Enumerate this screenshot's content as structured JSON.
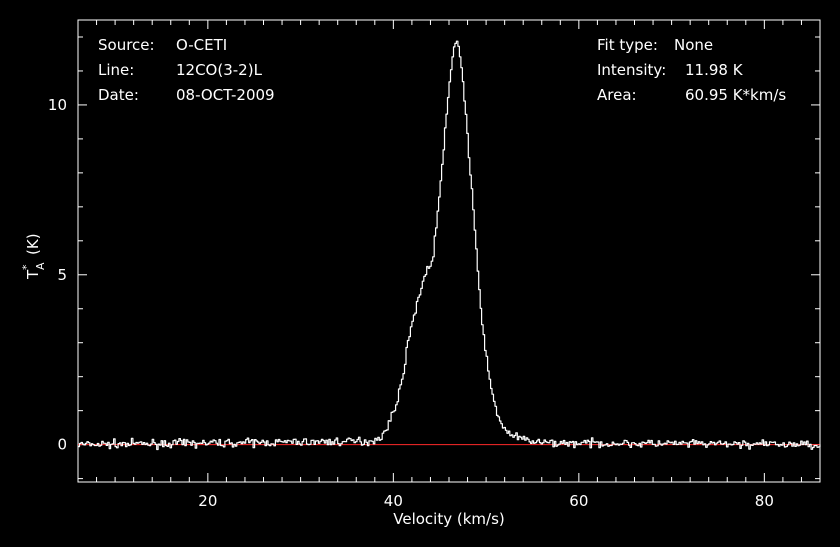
{
  "chart_data": {
    "type": "line",
    "xlabel": "Velocity (km/s)",
    "ylabel": "T*A (K)",
    "ylabel_main": "T",
    "ylabel_sup": "*",
    "ylabel_sub": "A",
    "ylabel_unit": "(K)",
    "xlim": [
      6,
      86
    ],
    "ylim": [
      -1.1,
      12.5
    ],
    "x_ticks": [
      20,
      40,
      60,
      80
    ],
    "y_ticks": [
      0,
      5,
      10
    ],
    "grid": false,
    "background_color": "#000000",
    "line_color": "#ffffff",
    "baseline_color": "#ff2a2a",
    "baseline_y": 0,
    "info_left": [
      {
        "key": "Source:",
        "value": "O-CETI"
      },
      {
        "key": "Line:",
        "value": "12CO(3-2)L"
      },
      {
        "key": "Date:",
        "value": "08-OCT-2009"
      }
    ],
    "info_right": [
      {
        "key": "Fit type:",
        "value": "None"
      },
      {
        "key": "Intensity:",
        "value": "11.98 K"
      },
      {
        "key": "Area:",
        "value": "60.95 K*km/s"
      }
    ],
    "series": [
      {
        "values": [
          [
            6,
            0.0
          ],
          [
            37.5,
            0.1
          ],
          [
            38.5,
            0.2
          ],
          [
            39.2,
            0.4
          ],
          [
            39.8,
            0.8
          ],
          [
            40.3,
            1.2
          ],
          [
            40.8,
            1.7
          ],
          [
            41.3,
            2.5
          ],
          [
            41.8,
            3.3
          ],
          [
            42.3,
            3.9
          ],
          [
            42.8,
            4.4
          ],
          [
            43.3,
            4.9
          ],
          [
            43.8,
            5.2
          ],
          [
            44.2,
            5.4
          ],
          [
            44.6,
            6.3
          ],
          [
            45.0,
            7.4
          ],
          [
            45.4,
            8.6
          ],
          [
            45.8,
            9.8
          ],
          [
            46.2,
            11.0
          ],
          [
            46.5,
            11.6
          ],
          [
            46.8,
            11.98
          ],
          [
            47.1,
            11.7
          ],
          [
            47.4,
            11.0
          ],
          [
            47.8,
            9.8
          ],
          [
            48.2,
            8.4
          ],
          [
            48.6,
            7.0
          ],
          [
            49.0,
            5.5
          ],
          [
            49.4,
            4.2
          ],
          [
            49.8,
            3.1
          ],
          [
            50.2,
            2.2
          ],
          [
            50.6,
            1.6
          ],
          [
            51.0,
            1.1
          ],
          [
            51.5,
            0.7
          ],
          [
            52.2,
            0.4
          ],
          [
            53.0,
            0.25
          ],
          [
            54.0,
            0.15
          ],
          [
            56.0,
            0.05
          ],
          [
            86,
            0.0
          ]
        ]
      }
    ]
  }
}
